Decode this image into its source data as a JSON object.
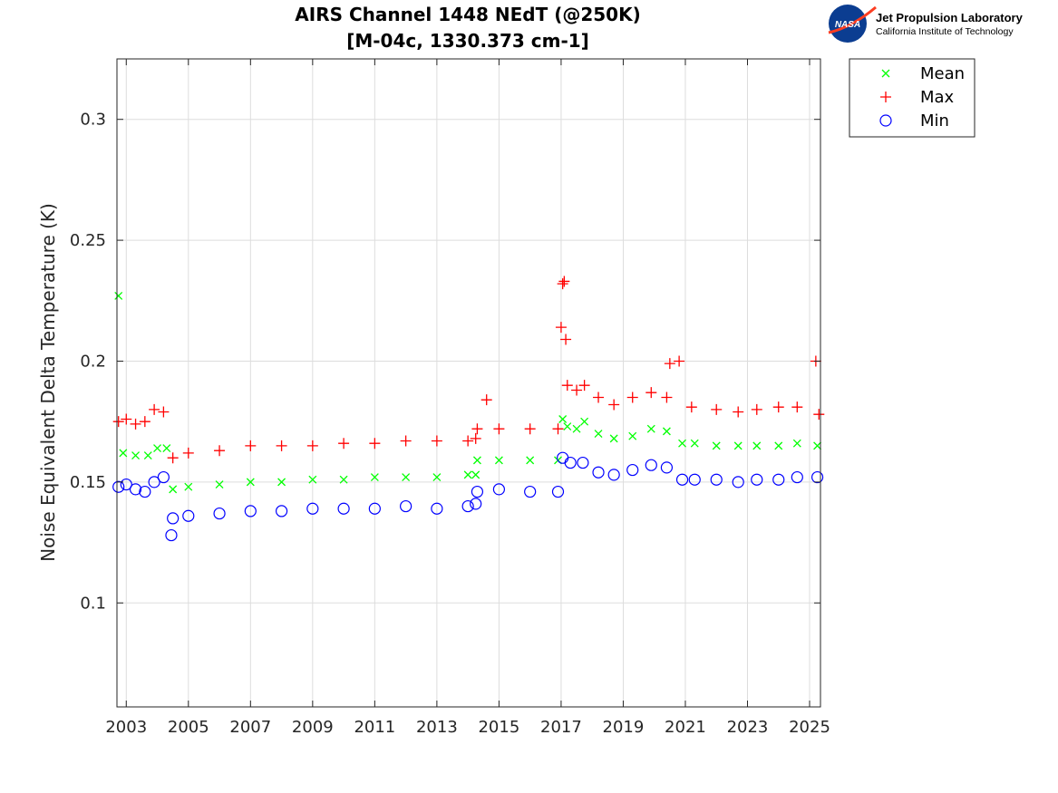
{
  "chart_data": {
    "type": "scatter",
    "title": "AIRS Channel 1448 NEdT (@250K)",
    "subtitle": "[M-04c, 1330.373 cm-1]",
    "xlabel": "",
    "ylabel": "Noise Equivalent Delta Temperature (K)",
    "xlim": [
      2002.7,
      2025.35
    ],
    "ylim": [
      0.057,
      0.325
    ],
    "xticks": [
      "2003",
      "2005",
      "2007",
      "2009",
      "2011",
      "2013",
      "2015",
      "2017",
      "2019",
      "2021",
      "2023",
      "2025"
    ],
    "yticks": [
      "0.1",
      "0.15",
      "0.2",
      "0.25",
      "0.3"
    ],
    "grid": true,
    "legend_position": "top-right outside",
    "series": [
      {
        "name": "Mean",
        "marker": "x",
        "color": "#00ff00",
        "x": [
          2002.75,
          2002.9,
          2003.3,
          2003.7,
          2004.0,
          2004.3,
          2004.5,
          2005.0,
          2006.0,
          2007.0,
          2008.0,
          2009.0,
          2010.0,
          2011.0,
          2012.0,
          2013.0,
          2014.0,
          2014.25,
          2014.3,
          2015.0,
          2016.0,
          2016.9,
          2017.05,
          2017.2,
          2017.5,
          2017.75,
          2018.2,
          2018.7,
          2019.3,
          2019.9,
          2020.4,
          2020.9,
          2021.3,
          2022.0,
          2022.7,
          2023.3,
          2024.0,
          2024.6,
          2025.25
        ],
        "y": [
          0.227,
          0.162,
          0.161,
          0.161,
          0.164,
          0.164,
          0.147,
          0.148,
          0.149,
          0.15,
          0.15,
          0.151,
          0.151,
          0.152,
          0.152,
          0.152,
          0.153,
          0.153,
          0.159,
          0.159,
          0.159,
          0.159,
          0.176,
          0.173,
          0.172,
          0.175,
          0.17,
          0.168,
          0.169,
          0.172,
          0.171,
          0.166,
          0.166,
          0.165,
          0.165,
          0.165,
          0.165,
          0.166,
          0.165
        ]
      },
      {
        "name": "Max",
        "marker": "+",
        "color": "#ff0000",
        "x": [
          2002.75,
          2003.0,
          2003.3,
          2003.6,
          2003.9,
          2004.2,
          2004.5,
          2005.0,
          2006.0,
          2007.0,
          2008.0,
          2009.0,
          2010.0,
          2011.0,
          2012.0,
          2013.0,
          2014.0,
          2014.25,
          2014.3,
          2014.6,
          2015.0,
          2016.0,
          2016.9,
          2017.0,
          2017.05,
          2017.1,
          2017.15,
          2017.2,
          2017.5,
          2017.75,
          2018.2,
          2018.7,
          2019.3,
          2019.9,
          2020.4,
          2020.5,
          2020.8,
          2021.2,
          2022.0,
          2022.7,
          2023.3,
          2024.0,
          2024.6,
          2025.2,
          2025.3
        ],
        "y": [
          0.175,
          0.176,
          0.174,
          0.175,
          0.18,
          0.179,
          0.16,
          0.162,
          0.163,
          0.165,
          0.165,
          0.165,
          0.166,
          0.166,
          0.167,
          0.167,
          0.167,
          0.168,
          0.172,
          0.184,
          0.172,
          0.172,
          0.172,
          0.214,
          0.232,
          0.233,
          0.209,
          0.19,
          0.188,
          0.19,
          0.185,
          0.182,
          0.185,
          0.187,
          0.185,
          0.199,
          0.2,
          0.181,
          0.18,
          0.179,
          0.18,
          0.181,
          0.181,
          0.2,
          0.178
        ]
      },
      {
        "name": "Min",
        "marker": "o",
        "color": "#0000ff",
        "x": [
          2002.75,
          2003.0,
          2003.3,
          2003.6,
          2003.9,
          2004.2,
          2004.45,
          2004.5,
          2005.0,
          2006.0,
          2007.0,
          2008.0,
          2009.0,
          2010.0,
          2011.0,
          2012.0,
          2013.0,
          2014.0,
          2014.25,
          2014.3,
          2015.0,
          2016.0,
          2016.9,
          2017.05,
          2017.3,
          2017.7,
          2018.2,
          2018.7,
          2019.3,
          2019.9,
          2020.4,
          2020.9,
          2021.3,
          2022.0,
          2022.7,
          2023.3,
          2024.0,
          2024.6,
          2025.25
        ],
        "y": [
          0.148,
          0.149,
          0.147,
          0.146,
          0.15,
          0.152,
          0.128,
          0.135,
          0.136,
          0.137,
          0.138,
          0.138,
          0.139,
          0.139,
          0.139,
          0.14,
          0.139,
          0.14,
          0.141,
          0.146,
          0.147,
          0.146,
          0.146,
          0.16,
          0.158,
          0.158,
          0.154,
          0.153,
          0.155,
          0.157,
          0.156,
          0.151,
          0.151,
          0.151,
          0.15,
          0.151,
          0.151,
          0.152,
          0.152
        ]
      }
    ]
  },
  "logo": {
    "name": "Jet Propulsion Laboratory",
    "subtitle": "California Institute of Technology",
    "emblem_text": "NASA"
  },
  "colors": {
    "mean": "#00ff00",
    "max": "#ff0000",
    "min": "#0000ff",
    "grid": "#dddddd",
    "nasa_blue": "#0b3d91",
    "nasa_red": "#fc3d21"
  }
}
